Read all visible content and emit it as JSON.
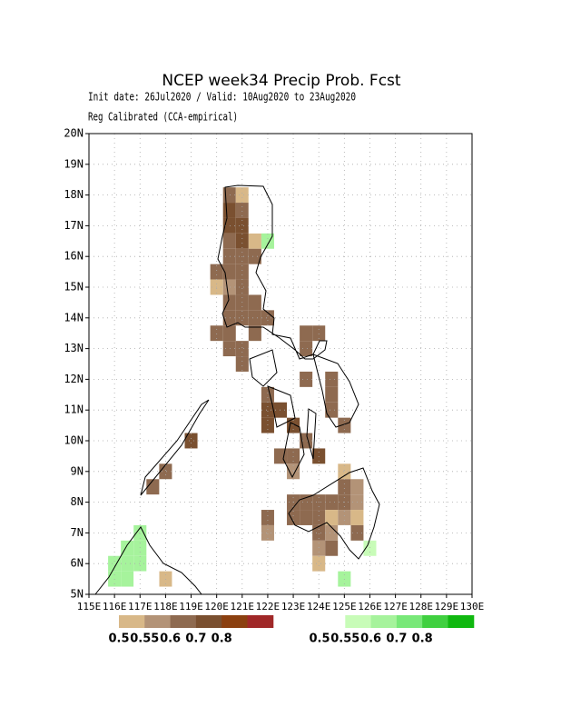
{
  "chart_data": {
    "type": "map",
    "title": "NCEP week34 Precip Prob. Fcst",
    "subtitle": "Init date: 26Jul2020 / Valid: 10Aug2020 to 23Aug2020",
    "subtitle2": "Reg Calibrated (CCA-empirical)",
    "xlim": [
      115,
      130
    ],
    "ylim": [
      5,
      20
    ],
    "xticks": [
      {
        "value": 115,
        "label": "115E"
      },
      {
        "value": 116,
        "label": "116E"
      },
      {
        "value": 117,
        "label": "117E"
      },
      {
        "value": 118,
        "label": "118E"
      },
      {
        "value": 119,
        "label": "119E"
      },
      {
        "value": 120,
        "label": "120E"
      },
      {
        "value": 121,
        "label": "121E"
      },
      {
        "value": 122,
        "label": "122E"
      },
      {
        "value": 123,
        "label": "123E"
      },
      {
        "value": 124,
        "label": "124E"
      },
      {
        "value": 125,
        "label": "125E"
      },
      {
        "value": 126,
        "label": "126E"
      },
      {
        "value": 127,
        "label": "127E"
      },
      {
        "value": 128,
        "label": "128E"
      },
      {
        "value": 129,
        "label": "129E"
      },
      {
        "value": 130,
        "label": "130E"
      }
    ],
    "yticks": [
      {
        "value": 5,
        "label": "5N"
      },
      {
        "value": 6,
        "label": "6N"
      },
      {
        "value": 7,
        "label": "7N"
      },
      {
        "value": 8,
        "label": "8N"
      },
      {
        "value": 9,
        "label": "9N"
      },
      {
        "value": 10,
        "label": "10N"
      },
      {
        "value": 11,
        "label": "11N"
      },
      {
        "value": 12,
        "label": "12N"
      },
      {
        "value": 13,
        "label": "13N"
      },
      {
        "value": 14,
        "label": "14N"
      },
      {
        "value": 15,
        "label": "15N"
      },
      {
        "value": 16,
        "label": "16N"
      },
      {
        "value": 17,
        "label": "17N"
      },
      {
        "value": 18,
        "label": "18N"
      },
      {
        "value": 19,
        "label": "19N"
      },
      {
        "value": 20,
        "label": "20N"
      }
    ],
    "grid": true,
    "series": [
      {
        "colors": [
          "#d8b888",
          "#b39377",
          "#8e6a50",
          "#7a5030",
          "#8b4010",
          "#a02828"
        ],
        "levels": [
          0.5,
          0.55,
          0.6,
          0.7,
          0.8
        ],
        "cells": [
          [
            120.5,
            18,
            0.6
          ],
          [
            121,
            18,
            0.5
          ],
          [
            120.5,
            17.5,
            0.7
          ],
          [
            121,
            17.5,
            0.6
          ],
          [
            120.5,
            17,
            0.7
          ],
          [
            121,
            17,
            0.7
          ],
          [
            120.5,
            16.5,
            0.6
          ],
          [
            121,
            16.5,
            0.7
          ],
          [
            121.5,
            16.5,
            0.5
          ],
          [
            120.5,
            16,
            0.6
          ],
          [
            121,
            16,
            0.6
          ],
          [
            121.5,
            16,
            0.6
          ],
          [
            120,
            15.5,
            0.6
          ],
          [
            120.5,
            15.5,
            0.6
          ],
          [
            121,
            15.5,
            0.6
          ],
          [
            120,
            15,
            0.5
          ],
          [
            120.5,
            15,
            0.55
          ],
          [
            121,
            15,
            0.6
          ],
          [
            120.5,
            14.5,
            0.6
          ],
          [
            121,
            14.5,
            0.6
          ],
          [
            121.5,
            14.5,
            0.6
          ],
          [
            120.5,
            14,
            0.6
          ],
          [
            121,
            14,
            0.6
          ],
          [
            121.5,
            14,
            0.6
          ],
          [
            122,
            14,
            0.6
          ],
          [
            120,
            13.5,
            0.6
          ],
          [
            120.5,
            13.5,
            0.6
          ],
          [
            121.5,
            13.5,
            0.6
          ],
          [
            123.5,
            13.5,
            0.6
          ],
          [
            124,
            13.5,
            0.6
          ],
          [
            120.5,
            13,
            0.6
          ],
          [
            121,
            13,
            0.6
          ],
          [
            123.5,
            13,
            0.6
          ],
          [
            121,
            12.5,
            0.6
          ],
          [
            123.5,
            12,
            0.6
          ],
          [
            124.5,
            12,
            0.6
          ],
          [
            122,
            11.5,
            0.6
          ],
          [
            124.5,
            11.5,
            0.6
          ],
          [
            122,
            11,
            0.7
          ],
          [
            122.5,
            11,
            0.7
          ],
          [
            124.5,
            11,
            0.6
          ],
          [
            122,
            10.5,
            0.7
          ],
          [
            123,
            10.5,
            0.7
          ],
          [
            125,
            10.5,
            0.6
          ],
          [
            119,
            10,
            0.7
          ],
          [
            123.5,
            10,
            0.6
          ],
          [
            122.5,
            9.5,
            0.6
          ],
          [
            123,
            9.5,
            0.6
          ],
          [
            124,
            9.5,
            0.7
          ],
          [
            118,
            9,
            0.6
          ],
          [
            123,
            9,
            0.55
          ],
          [
            125,
            9,
            0.5
          ],
          [
            117.5,
            8.5,
            0.6
          ],
          [
            125,
            8.5,
            0.6
          ],
          [
            125.5,
            8.5,
            0.55
          ],
          [
            123,
            8,
            0.6
          ],
          [
            123.5,
            8,
            0.6
          ],
          [
            124,
            8,
            0.6
          ],
          [
            124.5,
            8,
            0.6
          ],
          [
            125,
            8,
            0.6
          ],
          [
            125.5,
            8,
            0.55
          ],
          [
            122,
            7.5,
            0.6
          ],
          [
            123,
            7.5,
            0.6
          ],
          [
            123.5,
            7.5,
            0.6
          ],
          [
            124,
            7.5,
            0.6
          ],
          [
            124.5,
            7.5,
            0.5
          ],
          [
            125,
            7.5,
            0.55
          ],
          [
            125.5,
            7.5,
            0.5
          ],
          [
            122,
            7,
            0.55
          ],
          [
            124,
            7,
            0.6
          ],
          [
            124.5,
            7,
            0.55
          ],
          [
            125.5,
            7,
            0.6
          ],
          [
            124,
            6.5,
            0.55
          ],
          [
            124.5,
            6.5,
            0.6
          ],
          [
            124,
            6,
            0.5
          ],
          [
            118,
            5.5,
            0.5
          ]
        ]
      },
      {
        "colors": [
          "#ffffff",
          "#c8fcb8",
          "#a6f39c",
          "#78e878",
          "#40d040",
          "#10b810"
        ],
        "levels": [
          0.5,
          0.55,
          0.6,
          0.7,
          0.8
        ],
        "cells": [
          [
            121.5,
            18,
            0.5
          ],
          [
            121.5,
            17.5,
            0.5
          ],
          [
            121.5,
            17,
            0.5
          ],
          [
            122,
            17,
            0.5
          ],
          [
            122,
            16.5,
            0.6
          ],
          [
            125,
            7,
            0.5
          ],
          [
            125,
            6.5,
            0.5
          ],
          [
            126,
            6.5,
            0.55
          ],
          [
            125,
            6,
            0.5
          ],
          [
            125,
            5.5,
            0.6
          ],
          [
            117,
            7,
            0.6
          ],
          [
            116.5,
            6.5,
            0.6
          ],
          [
            117,
            6.5,
            0.6
          ],
          [
            116,
            6,
            0.6
          ],
          [
            116.5,
            6,
            0.6
          ],
          [
            117,
            6,
            0.6
          ],
          [
            116,
            5.5,
            0.6
          ],
          [
            116.5,
            5.5,
            0.6
          ],
          [
            117,
            5.5,
            0.5
          ],
          [
            117.5,
            5.5,
            0.5
          ]
        ]
      }
    ]
  }
}
